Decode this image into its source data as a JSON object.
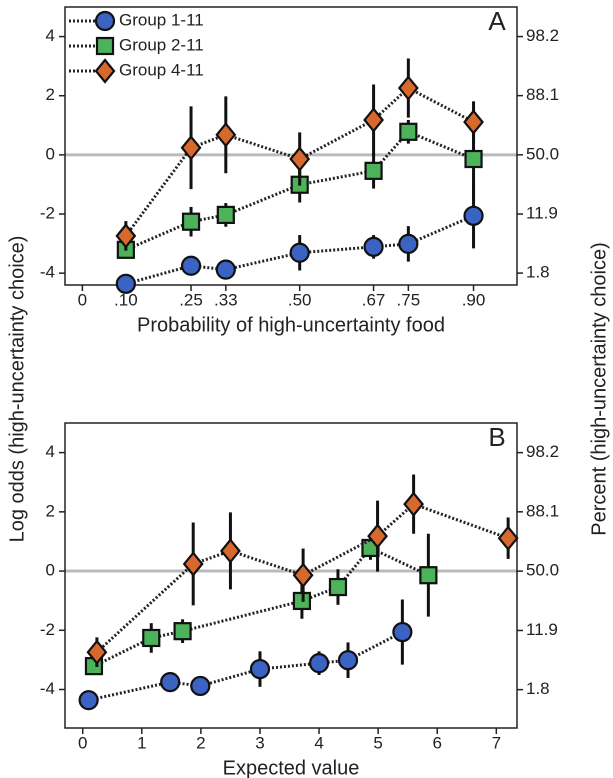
{
  "ylabel": "Log odds (high-uncertainty choice)",
  "y2label": "Percent (high-uncertainty choice)",
  "chart_data": [
    {
      "type": "line",
      "panel_label": "A",
      "xlabel": "Probability of high-uncertainty food",
      "x": [
        0.1,
        0.25,
        0.33,
        0.5,
        0.67,
        0.75,
        0.9
      ],
      "xlim": [
        -0.04,
        1.0
      ],
      "xticks": [
        0,
        {
          "value": 0.1,
          "label": ".10"
        },
        {
          "value": 0.25,
          "label": ".25"
        },
        {
          "value": 0.33,
          "label": ".33"
        },
        {
          "value": 0.5,
          "label": ".50"
        },
        {
          "value": 0.67,
          "label": ".67"
        },
        {
          "value": 0.75,
          "label": ".75"
        },
        {
          "value": 0.9,
          "label": ".90"
        }
      ],
      "ylim": [
        -4.4,
        5
      ],
      "yticks": [
        -4,
        -2,
        0,
        2,
        4
      ],
      "y2scale": "logit",
      "y2lim": [
        1.21,
        99.33
      ],
      "y2ticks": [
        1.8,
        11.9,
        {
          "value": 50,
          "label": "50.0"
        },
        88.1,
        98.2
      ],
      "hline": 0,
      "legend": "upper left",
      "series": [
        {
          "name": "Group 1-11",
          "color": "#3a63c4",
          "marker": "circle",
          "values": [
            -4.36,
            -3.75,
            -3.88,
            -3.31,
            -3.11,
            -3.01,
            -2.06
          ],
          "errors": [
            0.2,
            0.2,
            0.2,
            0.6,
            0.4,
            0.6,
            1.1
          ]
        },
        {
          "name": "Group 2-11",
          "color": "#4db35a",
          "marker": "square",
          "values": [
            -3.21,
            -2.26,
            -2.03,
            -1.01,
            -0.54,
            0.78,
            -0.14
          ],
          "errors": [
            0.3,
            0.5,
            0.4,
            0.6,
            0.6,
            0.4,
            1.4
          ]
        },
        {
          "name": "Group 4-11",
          "color": "#d8692e",
          "marker": "diamond",
          "values": [
            -2.74,
            0.24,
            0.68,
            -0.14,
            1.18,
            2.26,
            1.11
          ],
          "errors": [
            0.5,
            1.4,
            1.3,
            0.9,
            1.2,
            1.0,
            0.7
          ]
        }
      ]
    },
    {
      "type": "line",
      "panel_label": "B",
      "xlabel": "Expected value",
      "xlim": [
        -0.3,
        7.35
      ],
      "xticks": [
        0,
        1,
        2,
        3,
        4,
        5,
        6,
        7
      ],
      "ylim": [
        -5.3,
        5
      ],
      "yticks": [
        -4,
        -2,
        0,
        2,
        4
      ],
      "y2scale": "logit",
      "y2lim": [
        0.5,
        99.33
      ],
      "y2ticks": [
        1.8,
        11.9,
        {
          "value": 50,
          "label": "50.0"
        },
        88.1,
        98.2
      ],
      "hline": 0,
      "series": [
        {
          "color": "#3a63c4",
          "marker": "circle",
          "x": [
            0.1,
            1.48,
            1.99,
            3.0,
            4.0,
            4.49,
            5.41
          ],
          "values": [
            -4.36,
            -3.75,
            -3.88,
            -3.31,
            -3.11,
            -3.01,
            -2.06
          ],
          "errors": [
            0.2,
            0.2,
            0.2,
            0.6,
            0.4,
            0.6,
            1.1
          ]
        },
        {
          "color": "#4db35a",
          "marker": "square",
          "x": [
            0.19,
            1.16,
            1.69,
            3.71,
            4.32,
            4.87,
            5.85
          ],
          "values": [
            -3.21,
            -2.26,
            -2.03,
            -1.01,
            -0.54,
            0.78,
            -0.14
          ],
          "errors": [
            0.3,
            0.5,
            0.4,
            0.6,
            0.6,
            0.4,
            1.4
          ]
        },
        {
          "color": "#d8692e",
          "marker": "diamond",
          "x": [
            0.24,
            1.87,
            2.5,
            3.73,
            4.99,
            5.6,
            7.2
          ],
          "values": [
            -2.74,
            0.24,
            0.68,
            -0.14,
            1.18,
            2.26,
            1.11
          ],
          "errors": [
            0.5,
            1.4,
            1.3,
            0.9,
            1.2,
            1.0,
            0.7
          ]
        }
      ]
    }
  ]
}
